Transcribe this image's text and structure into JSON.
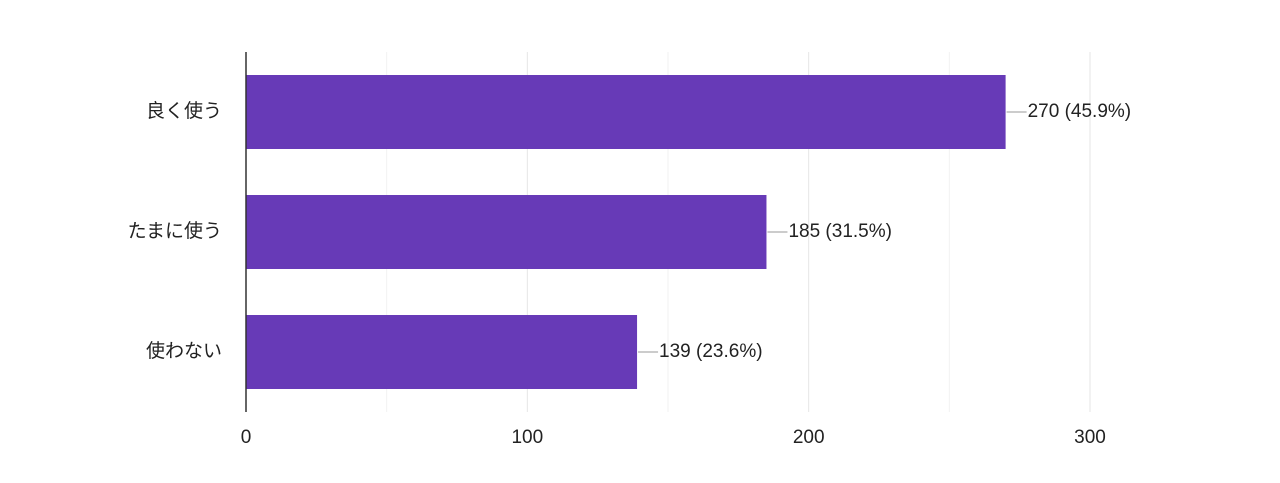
{
  "chart_data": {
    "type": "hbar",
    "categories": [
      "良く使う",
      "たまに使う",
      "使わない"
    ],
    "values": [
      270,
      185,
      139
    ],
    "value_labels": [
      "270 (45.9%)",
      "185 (31.5%)",
      "139 (23.6%)"
    ],
    "color": "#673ab7",
    "xlim": [
      0,
      300
    ],
    "xticks": [
      0,
      100,
      200,
      300
    ],
    "x_minor_ticks": [
      50,
      150,
      250
    ],
    "grid": true
  }
}
